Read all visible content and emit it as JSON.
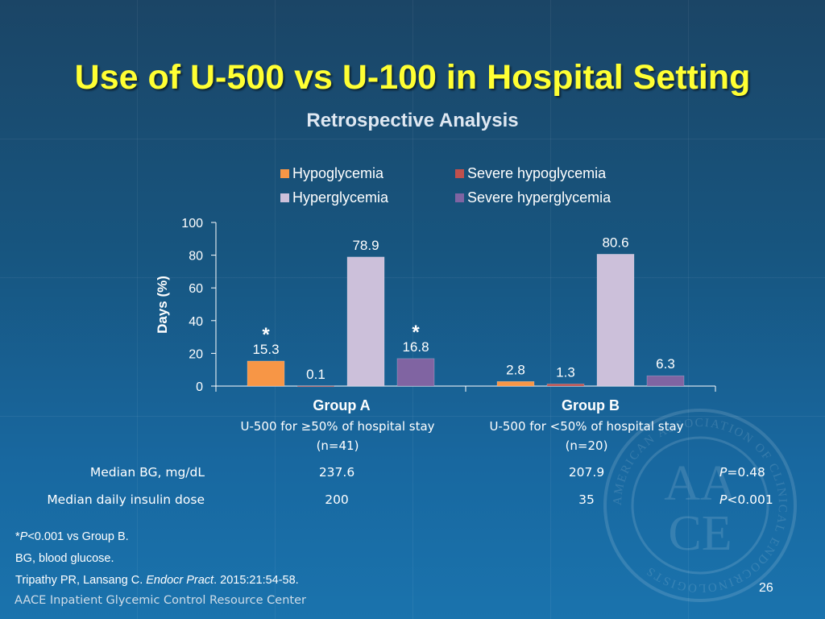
{
  "title": "Use of U-500 vs U-100 in Hospital Setting",
  "subtitle": "Retrospective Analysis",
  "colors": {
    "hypoglycemia": "#f79646",
    "severe_hypoglycemia": "#c0504d",
    "hyperglycemia": "#ccc0da",
    "severe_hyperglycemia": "#8064a2",
    "title": "#ffff33"
  },
  "chart_data": {
    "type": "bar",
    "title": "",
    "xlabel": "",
    "ylabel": "Days (%)",
    "ylim": [
      0,
      100
    ],
    "yticks": [
      "0",
      "20",
      "40",
      "60",
      "80",
      "100"
    ],
    "categories": [
      "Group A",
      "Group B"
    ],
    "legend_position": "top",
    "series": [
      {
        "name": "Hypoglycemia",
        "color": "#f79646",
        "values": [
          15.3,
          2.8
        ],
        "labels": [
          "15.3",
          "2.8"
        ]
      },
      {
        "name": "Severe hypoglycemia",
        "color": "#c0504d",
        "values": [
          0.1,
          1.3
        ],
        "labels": [
          "0.1",
          "1.3"
        ]
      },
      {
        "name": "Hyperglycemia",
        "color": "#ccc0da",
        "values": [
          78.9,
          80.6
        ],
        "labels": [
          "78.9",
          "80.6"
        ]
      },
      {
        "name": "Severe hyperglycemia",
        "color": "#8064a2",
        "values": [
          16.8,
          6.3
        ],
        "labels": [
          "16.8",
          "6.3"
        ]
      }
    ],
    "annotations": [
      {
        "text": "*",
        "category": "Group A",
        "series": "Hypoglycemia"
      },
      {
        "text": "*",
        "category": "Group A",
        "series": "Severe hyperglycemia"
      }
    ]
  },
  "groups": [
    {
      "label": "Group A",
      "desc": "U-500 for ≥50% of hospital stay",
      "n": "(n=41)"
    },
    {
      "label": "Group B",
      "desc": "U-500 for <50% of hospital stay",
      "n": "(n=20)"
    }
  ],
  "table": {
    "rows": [
      {
        "label": "Median BG, mg/dL",
        "a": "237.6",
        "b": "207.9",
        "p_sym": "P",
        "p_rest": "=0.48"
      },
      {
        "label": "Median daily insulin dose",
        "a": "200",
        "b": "35",
        "p_sym": "P",
        "p_rest": "<0.001"
      }
    ]
  },
  "footnotes": {
    "star_prefix": "*",
    "star_p": "P",
    "star_rest": "<0.001 vs Group B.",
    "bg": "BG, blood glucose.",
    "cite_pre": "Tripathy PR, Lansang C. ",
    "cite_journal": "Endocr Pract",
    "cite_post": ". 2015:21:54-58."
  },
  "footer": {
    "resource": "AACE Inpatient Glycemic Control Resource Center",
    "page": "26"
  },
  "seal": {
    "ring_text": "AMERICAN ASSOCIATION OF CLINICAL ENDOCRINOLOGISTS",
    "letters_top": "AA",
    "letters_bottom": "CE"
  }
}
